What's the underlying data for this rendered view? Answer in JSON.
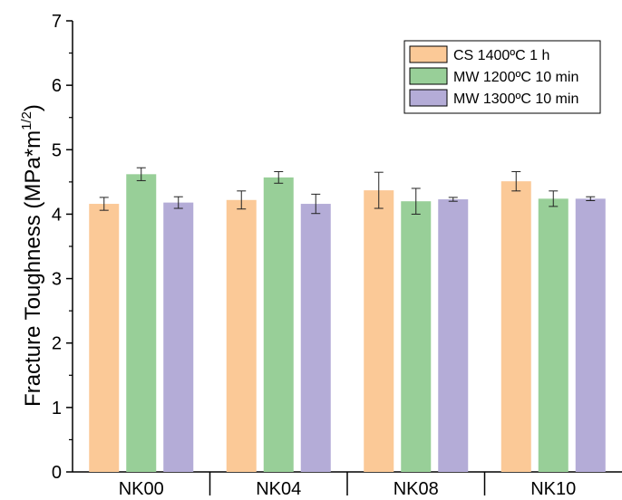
{
  "chart_data": {
    "type": "bar",
    "title": "",
    "xlabel": "",
    "ylabel": "Fracture Toughness (MPa*m",
    "ylabel_sup": "1/2",
    "ylabel_close": ")",
    "ylim": [
      0,
      7
    ],
    "yticks": [
      0,
      1,
      2,
      3,
      4,
      5,
      6,
      7
    ],
    "tick_labels": [
      "0",
      "1",
      "2",
      "3",
      "4",
      "5",
      "6",
      "7"
    ],
    "grid": false,
    "legend_position": "top-right",
    "categories": [
      "NK00",
      "NK04",
      "NK08",
      "NK10"
    ],
    "series": [
      {
        "name": "CS 1400ºC 1 h",
        "color": "#fbc997",
        "values": [
          4.16,
          4.22,
          4.37,
          4.51
        ],
        "errors": [
          0.1,
          0.14,
          0.28,
          0.15
        ]
      },
      {
        "name": "MW 1200ºC 10 min",
        "color": "#98cf98",
        "values": [
          4.62,
          4.57,
          4.2,
          4.24
        ],
        "errors": [
          0.1,
          0.09,
          0.2,
          0.12
        ]
      },
      {
        "name": "MW 1300ºC 10 min",
        "color": "#b4acd7",
        "values": [
          4.18,
          4.16,
          4.23,
          4.24
        ],
        "errors": [
          0.09,
          0.15,
          0.03,
          0.03
        ]
      }
    ]
  }
}
